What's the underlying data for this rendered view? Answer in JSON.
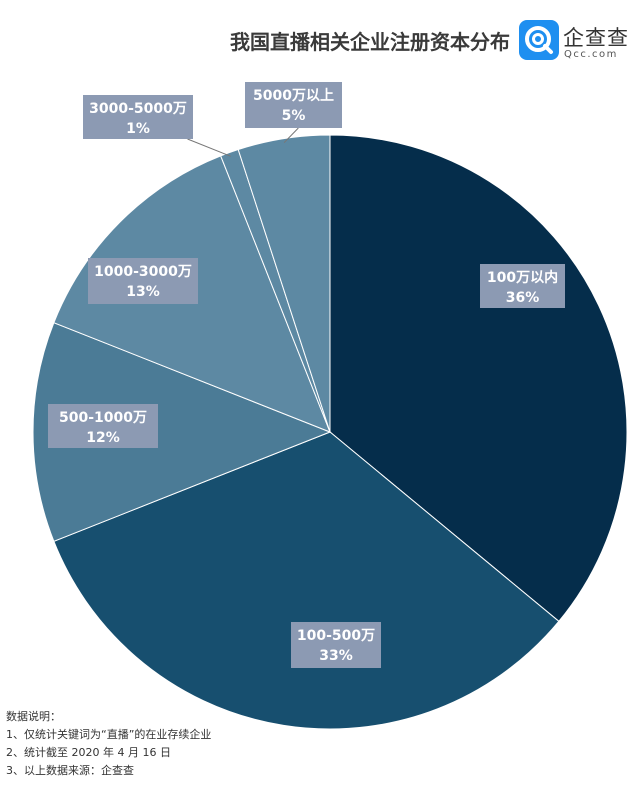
{
  "header": {
    "title": "我国直播相关企业注册资本分布",
    "logo_name": "企查查",
    "logo_domain": "Qcc.com"
  },
  "colors": {
    "label_box": "#8c9ab3",
    "label_text": "#ffffff",
    "slice_border": "#ffffff"
  },
  "chart_data": {
    "type": "pie",
    "title": "我国直播相关企业注册资本分布",
    "slices": [
      {
        "label": "100万以内",
        "value": 36,
        "display": "36%",
        "color": "#052d4b"
      },
      {
        "label": "100-500万",
        "value": 33,
        "display": "33%",
        "color": "#174f6f"
      },
      {
        "label": "500-1000万",
        "value": 12,
        "display": "12%",
        "color": "#4b7b96"
      },
      {
        "label": "1000-3000万",
        "value": 13,
        "display": "13%",
        "color": "#5d89a3"
      },
      {
        "label": "3000-5000万",
        "value": 1,
        "display": "1%",
        "color": "#5d89a3"
      },
      {
        "label": "5000万以上",
        "value": 5,
        "display": "5%",
        "color": "#5d89a3"
      }
    ]
  },
  "notes": {
    "heading": "数据说明：",
    "items": [
      "1、仅统计关键词为“直播”的在业存续企业",
      "2、统计截至 2020 年 4 月 16 日",
      "3、以上数据来源：企查查"
    ]
  }
}
